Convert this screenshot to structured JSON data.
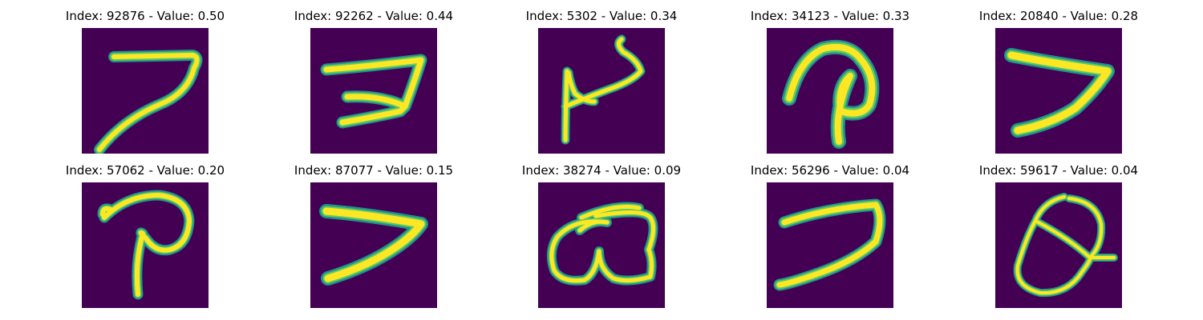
{
  "colors": {
    "background": "#440154",
    "stroke_outer": "#21918c",
    "stroke_mid": "#5ec962",
    "stroke_inner": "#fde725"
  },
  "panels": [
    {
      "title": "Index: 92876 - Value: 0.50",
      "glyph": "seven-like-stroke"
    },
    {
      "title": "Index: 92262 - Value: 0.44",
      "glyph": "seven-like-stroke-crossed"
    },
    {
      "title": "Index: 5302 - Value: 0.34",
      "glyph": "curved-y-like-stroke"
    },
    {
      "title": "Index: 34123 - Value: 0.33",
      "glyph": "p-like-stroke"
    },
    {
      "title": "Index: 20840 - Value: 0.28",
      "glyph": "seven-like-stroke"
    },
    {
      "title": "Index: 57062 - Value: 0.20",
      "glyph": "p-like-stroke"
    },
    {
      "title": "Index: 87077 - Value: 0.15",
      "glyph": "seven-like-stroke"
    },
    {
      "title": "Index: 38274 - Value: 0.09",
      "glyph": "loops-stroke"
    },
    {
      "title": "Index: 56296 - Value: 0.04",
      "glyph": "seven-like-stroke"
    },
    {
      "title": "Index: 59617 - Value: 0.04",
      "glyph": "oval-loop-stroke"
    }
  ]
}
